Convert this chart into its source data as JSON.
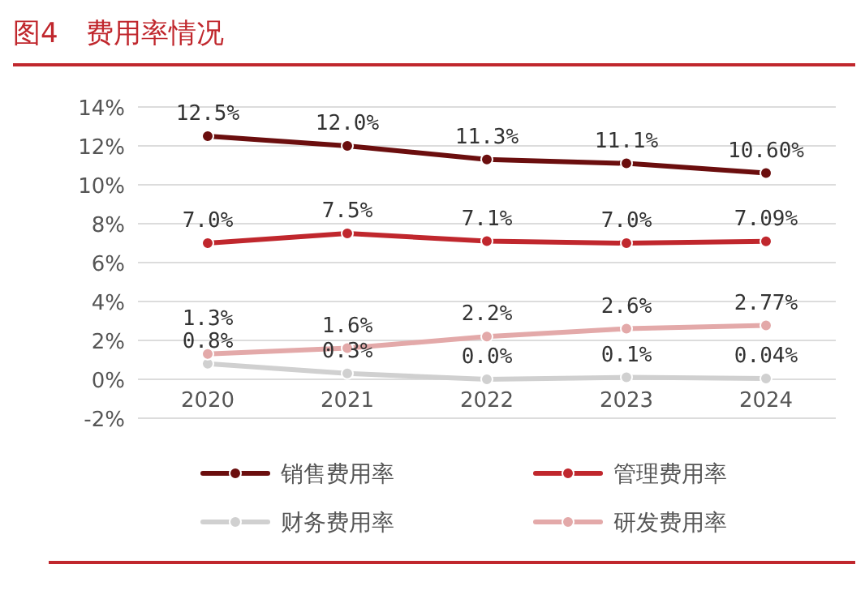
{
  "chart_data": {
    "type": "line",
    "title": "图4　费用率情况",
    "categories": [
      "2020",
      "2021",
      "2022",
      "2023",
      "2024"
    ],
    "series": [
      {
        "name": "销售费用率",
        "color": "#6b0e0e",
        "values": [
          12.5,
          12.0,
          11.3,
          11.1,
          10.6
        ],
        "value_labels": [
          "12.5%",
          "12.0%",
          "11.3%",
          "11.1%",
          "10.60%"
        ]
      },
      {
        "name": "管理费用率",
        "color": "#c0272d",
        "values": [
          7.0,
          7.5,
          7.1,
          7.0,
          7.09
        ],
        "value_labels": [
          "7.0%",
          "7.5%",
          "7.1%",
          "7.0%",
          "7.09%"
        ]
      },
      {
        "name": "财务费用率",
        "color": "#d0d0d0",
        "values": [
          0.8,
          0.3,
          0.0,
          0.1,
          0.04
        ],
        "value_labels": [
          "0.8%",
          "0.3%",
          "0.0%",
          "0.1%",
          "0.04%"
        ]
      },
      {
        "name": "研发费用率",
        "color": "#e3a9a9",
        "values": [
          1.3,
          1.6,
          2.2,
          2.6,
          2.77
        ],
        "value_labels": [
          "1.3%",
          "1.6%",
          "2.2%",
          "2.6%",
          "2.77%"
        ]
      }
    ],
    "ylim": [
      -2,
      14
    ],
    "yticks": [
      {
        "value": -2,
        "label": "-2%"
      },
      {
        "value": 0,
        "label": "0%"
      },
      {
        "value": 2,
        "label": "2%"
      },
      {
        "value": 4,
        "label": "4%"
      },
      {
        "value": 6,
        "label": "6%"
      },
      {
        "value": 8,
        "label": "8%"
      },
      {
        "value": 10,
        "label": "10%"
      },
      {
        "value": 12,
        "label": "12%"
      },
      {
        "value": 14,
        "label": "14%"
      }
    ],
    "grid": "y",
    "legend": "bottom",
    "marker": "circle",
    "line_style": "solid"
  }
}
